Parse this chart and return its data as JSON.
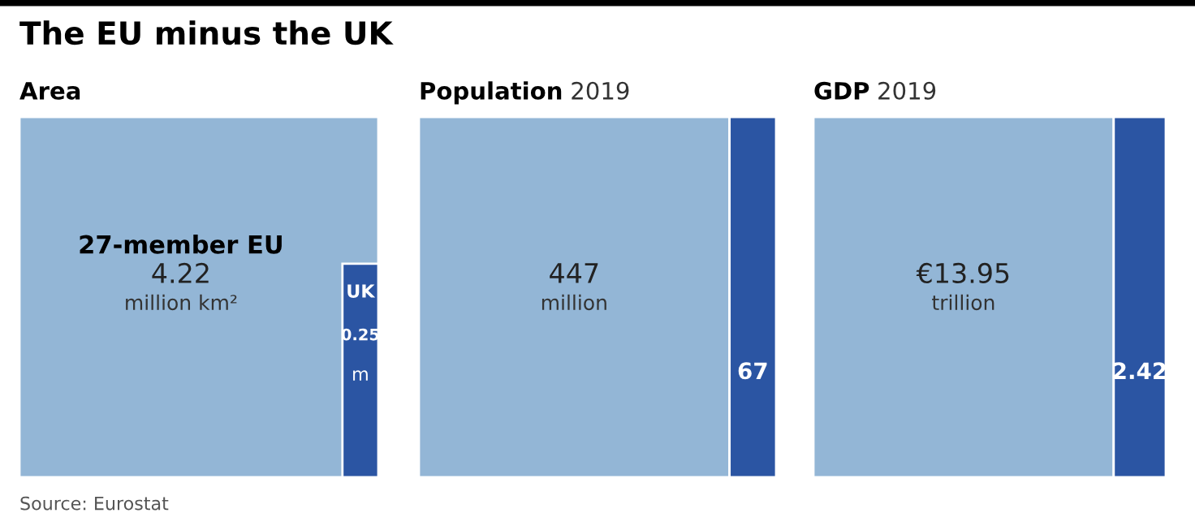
{
  "chart_data": [
    {
      "type": "other",
      "title": "The EU minus the UK",
      "subtitle": "Area",
      "categories": [
        "27-member EU",
        "UK"
      ],
      "values": [
        4.22,
        0.25
      ],
      "data_labels": true,
      "colors": [
        "#93b6d6",
        "#2b55a3"
      ],
      "annotations": [
        "million km²",
        "m",
        "Source: Eurostat"
      ]
    },
    {
      "type": "other",
      "subtitle": "Population 2019",
      "categories": [
        null,
        null
      ],
      "values": [
        447,
        67
      ],
      "data_labels": true,
      "colors": [
        "#93b6d6",
        "#2b55a3"
      ],
      "annotations": [
        "million"
      ]
    },
    {
      "type": "other",
      "subtitle": "GDP 2019",
      "categories": [
        null,
        null
      ],
      "values": [
        13.95,
        2.42
      ],
      "value_labels": [
        "€13.95",
        "2.42"
      ],
      "colors": [
        "#93b6d6",
        "#2b55a3"
      ],
      "annotations": [
        "trillion"
      ]
    }
  ]
}
